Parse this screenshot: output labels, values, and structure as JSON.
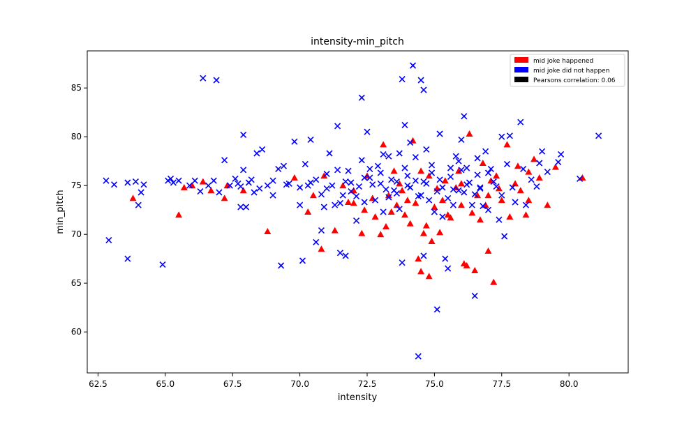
{
  "chart_data": {
    "type": "scatter",
    "title": "intensity-min_pitch",
    "xlabel": "intensity",
    "ylabel": "min_pitch",
    "xlim": [
      62.1,
      82.2
    ],
    "ylim": [
      55.8,
      88.8
    ],
    "xticks": [
      62.5,
      65.0,
      67.5,
      70.0,
      72.5,
      75.0,
      77.5,
      80.0
    ],
    "yticks": [
      60,
      65,
      70,
      75,
      80,
      85
    ],
    "grid": false,
    "legend_position": "top-right",
    "legend": [
      {
        "label": "mid joke happened",
        "color": "#ff0000"
      },
      {
        "label": "mid joke did not happen",
        "color": "#0000ff"
      },
      {
        "label": "Pearsons correlation: 0.06",
        "color": "#000000"
      }
    ],
    "series": [
      {
        "name": "mid joke happened",
        "marker": "triangle",
        "color": "#ff0000",
        "points": [
          [
            63.8,
            73.7
          ],
          [
            65.5,
            72.0
          ],
          [
            65.7,
            74.8
          ],
          [
            66.4,
            75.4
          ],
          [
            66.7,
            74.5
          ],
          [
            67.2,
            73.7
          ],
          [
            67.3,
            75.0
          ],
          [
            67.9,
            74.5
          ],
          [
            68.8,
            70.3
          ],
          [
            69.8,
            75.8
          ],
          [
            70.3,
            72.3
          ],
          [
            70.5,
            74.0
          ],
          [
            70.8,
            68.5
          ],
          [
            70.9,
            76.0
          ],
          [
            71.3,
            70.4
          ],
          [
            71.6,
            75.0
          ],
          [
            71.8,
            73.3
          ],
          [
            72.0,
            74.5
          ],
          [
            72.3,
            70.1
          ],
          [
            72.4,
            72.5
          ],
          [
            72.5,
            76.0
          ],
          [
            72.7,
            73.7
          ],
          [
            72.8,
            71.8
          ],
          [
            73.0,
            70.0
          ],
          [
            73.1,
            79.2
          ],
          [
            73.2,
            70.8
          ],
          [
            73.3,
            74.0
          ],
          [
            73.4,
            72.3
          ],
          [
            73.5,
            76.5
          ],
          [
            73.6,
            73.0
          ],
          [
            73.8,
            74.5
          ],
          [
            73.9,
            72.0
          ],
          [
            74.0,
            73.5
          ],
          [
            74.1,
            71.1
          ],
          [
            74.2,
            79.6
          ],
          [
            74.3,
            73.2
          ],
          [
            74.4,
            67.5
          ],
          [
            74.5,
            76.5
          ],
          [
            74.6,
            70.1
          ],
          [
            74.7,
            70.9
          ],
          [
            74.8,
            65.7
          ],
          [
            74.9,
            69.3
          ],
          [
            74.8,
            76.0
          ],
          [
            75.0,
            72.8
          ],
          [
            75.1,
            74.7
          ],
          [
            75.2,
            70.2
          ],
          [
            75.3,
            73.5
          ],
          [
            75.4,
            75.5
          ],
          [
            75.5,
            72.0
          ],
          [
            75.6,
            71.7
          ],
          [
            75.8,
            74.8
          ],
          [
            75.9,
            76.5
          ],
          [
            76.0,
            73.0
          ],
          [
            76.1,
            67.0
          ],
          [
            76.2,
            66.8
          ],
          [
            76.3,
            80.3
          ],
          [
            76.4,
            72.2
          ],
          [
            76.5,
            66.3
          ],
          [
            76.6,
            74.0
          ],
          [
            76.7,
            71.5
          ],
          [
            76.8,
            77.3
          ],
          [
            76.9,
            73.0
          ],
          [
            77.0,
            68.3
          ],
          [
            77.1,
            75.5
          ],
          [
            77.2,
            65.1
          ],
          [
            77.3,
            76.0
          ],
          [
            77.4,
            74.7
          ],
          [
            77.5,
            73.5
          ],
          [
            77.7,
            79.2
          ],
          [
            77.8,
            71.8
          ],
          [
            78.0,
            75.2
          ],
          [
            78.1,
            77.0
          ],
          [
            78.2,
            74.5
          ],
          [
            78.4,
            72.0
          ],
          [
            78.5,
            76.4
          ],
          [
            78.5,
            73.5
          ],
          [
            78.7,
            77.7
          ],
          [
            78.9,
            75.8
          ],
          [
            79.2,
            73.0
          ],
          [
            79.5,
            76.9
          ],
          [
            80.5,
            75.8
          ],
          [
            66.0,
            75.0
          ],
          [
            72.0,
            73.2
          ],
          [
            73.7,
            75.2
          ],
          [
            74.5,
            66.2
          ],
          [
            76.0,
            75.2
          ],
          [
            77.0,
            74.0
          ]
        ]
      },
      {
        "name": "mid joke did not happen",
        "marker": "x",
        "color": "#0000ff",
        "points": [
          [
            62.8,
            75.5
          ],
          [
            62.9,
            69.4
          ],
          [
            63.1,
            75.1
          ],
          [
            63.6,
            67.5
          ],
          [
            63.6,
            75.3
          ],
          [
            63.9,
            75.4
          ],
          [
            64.0,
            73.0
          ],
          [
            64.1,
            74.3
          ],
          [
            64.2,
            75.1
          ],
          [
            64.9,
            66.9
          ],
          [
            65.1,
            75.5
          ],
          [
            65.2,
            75.7
          ],
          [
            65.3,
            75.3
          ],
          [
            65.5,
            75.5
          ],
          [
            65.9,
            75.0
          ],
          [
            66.1,
            75.5
          ],
          [
            66.3,
            74.4
          ],
          [
            66.4,
            86.0
          ],
          [
            66.6,
            75.0
          ],
          [
            66.8,
            75.5
          ],
          [
            66.9,
            85.8
          ],
          [
            67.0,
            74.3
          ],
          [
            67.2,
            77.6
          ],
          [
            67.4,
            75.0
          ],
          [
            67.6,
            75.7
          ],
          [
            67.8,
            74.9
          ],
          [
            67.9,
            80.2
          ],
          [
            67.8,
            72.8
          ],
          [
            67.9,
            76.6
          ],
          [
            68.0,
            72.8
          ],
          [
            68.1,
            75.3
          ],
          [
            68.3,
            74.3
          ],
          [
            68.4,
            78.3
          ],
          [
            68.6,
            78.7
          ],
          [
            68.8,
            75.0
          ],
          [
            69.0,
            74.0
          ],
          [
            69.2,
            76.7
          ],
          [
            69.3,
            66.8
          ],
          [
            69.4,
            77.0
          ],
          [
            69.6,
            75.2
          ],
          [
            69.8,
            79.5
          ],
          [
            70.0,
            73.0
          ],
          [
            70.1,
            67.3
          ],
          [
            70.2,
            77.2
          ],
          [
            70.3,
            75.0
          ],
          [
            70.4,
            79.7
          ],
          [
            70.6,
            69.2
          ],
          [
            70.8,
            70.4
          ],
          [
            70.9,
            72.8
          ],
          [
            71.0,
            76.2
          ],
          [
            71.1,
            78.3
          ],
          [
            71.3,
            73.0
          ],
          [
            71.4,
            81.1
          ],
          [
            71.5,
            68.1
          ],
          [
            71.6,
            74.0
          ],
          [
            71.7,
            67.8
          ],
          [
            71.8,
            76.5
          ],
          [
            71.9,
            75.3
          ],
          [
            72.1,
            71.4
          ],
          [
            72.3,
            84.0
          ],
          [
            72.4,
            73.3
          ],
          [
            72.5,
            80.5
          ],
          [
            72.6,
            75.8
          ],
          [
            72.8,
            73.5
          ],
          [
            72.9,
            77.0
          ],
          [
            73.0,
            76.3
          ],
          [
            73.1,
            72.3
          ],
          [
            73.3,
            78.0
          ],
          [
            73.4,
            75.6
          ],
          [
            73.6,
            74.2
          ],
          [
            73.7,
            78.3
          ],
          [
            73.8,
            67.1
          ],
          [
            73.8,
            85.9
          ],
          [
            73.9,
            81.2
          ],
          [
            74.0,
            75.0
          ],
          [
            74.1,
            79.4
          ],
          [
            74.2,
            87.3
          ],
          [
            74.3,
            75.5
          ],
          [
            74.4,
            57.5
          ],
          [
            74.5,
            85.8
          ],
          [
            74.6,
            84.8
          ],
          [
            74.5,
            74.0
          ],
          [
            74.6,
            67.8
          ],
          [
            74.7,
            78.7
          ],
          [
            74.8,
            73.5
          ],
          [
            74.9,
            76.3
          ],
          [
            75.0,
            72.3
          ],
          [
            75.1,
            62.3
          ],
          [
            75.2,
            80.3
          ],
          [
            75.3,
            74.8
          ],
          [
            75.4,
            67.5
          ],
          [
            75.5,
            66.5
          ],
          [
            75.6,
            76.8
          ],
          [
            75.7,
            73.0
          ],
          [
            75.8,
            78.0
          ],
          [
            75.9,
            74.5
          ],
          [
            76.0,
            79.7
          ],
          [
            76.1,
            82.1
          ],
          [
            76.2,
            76.8
          ],
          [
            76.3,
            75.3
          ],
          [
            76.4,
            73.0
          ],
          [
            76.5,
            63.7
          ],
          [
            76.6,
            77.8
          ],
          [
            76.7,
            74.7
          ],
          [
            76.9,
            78.5
          ],
          [
            77.0,
            72.5
          ],
          [
            77.1,
            76.7
          ],
          [
            77.3,
            74.9
          ],
          [
            77.4,
            71.5
          ],
          [
            77.5,
            80.0
          ],
          [
            77.6,
            69.8
          ],
          [
            77.7,
            77.2
          ],
          [
            77.8,
            80.1
          ],
          [
            77.9,
            74.8
          ],
          [
            78.0,
            73.3
          ],
          [
            78.2,
            81.5
          ],
          [
            78.3,
            76.7
          ],
          [
            78.4,
            73.0
          ],
          [
            78.6,
            75.6
          ],
          [
            78.8,
            74.9
          ],
          [
            78.9,
            77.3
          ],
          [
            79.0,
            78.5
          ],
          [
            79.2,
            76.4
          ],
          [
            79.6,
            77.4
          ],
          [
            79.7,
            78.2
          ],
          [
            80.4,
            75.7
          ],
          [
            81.1,
            80.1
          ],
          [
            70.4,
            75.3
          ],
          [
            71.0,
            74.7
          ],
          [
            71.7,
            75.4
          ],
          [
            72.2,
            74.9
          ],
          [
            72.7,
            75.1
          ],
          [
            73.2,
            74.6
          ],
          [
            73.6,
            75.4
          ],
          [
            74.1,
            74.8
          ],
          [
            74.7,
            75.2
          ],
          [
            75.2,
            75.6
          ],
          [
            75.7,
            74.6
          ],
          [
            76.2,
            75.1
          ],
          [
            76.7,
            74.8
          ],
          [
            69.5,
            75.1
          ],
          [
            70.0,
            74.8
          ],
          [
            70.6,
            75.6
          ],
          [
            71.2,
            75.0
          ],
          [
            71.9,
            74.4
          ],
          [
            72.4,
            75.8
          ],
          [
            73.0,
            75.2
          ],
          [
            73.5,
            74.5
          ],
          [
            74.0,
            76.0
          ],
          [
            74.6,
            75.4
          ],
          [
            75.1,
            74.4
          ],
          [
            75.6,
            75.9
          ],
          [
            76.1,
            74.3
          ],
          [
            76.6,
            76.1
          ],
          [
            77.2,
            75.4
          ],
          [
            69.0,
            75.5
          ],
          [
            68.5,
            74.7
          ],
          [
            68.2,
            75.6
          ],
          [
            67.7,
            75.2
          ],
          [
            70.8,
            74.1
          ],
          [
            71.4,
            76.6
          ],
          [
            72.1,
            73.9
          ],
          [
            72.6,
            76.7
          ],
          [
            73.3,
            73.8
          ],
          [
            73.9,
            76.8
          ],
          [
            74.4,
            73.9
          ],
          [
            74.9,
            77.1
          ],
          [
            75.5,
            73.7
          ],
          [
            76.0,
            76.6
          ],
          [
            76.5,
            74.1
          ],
          [
            77.0,
            76.3
          ],
          [
            77.5,
            74.0
          ],
          [
            73.1,
            78.2
          ],
          [
            74.3,
            77.9
          ],
          [
            72.3,
            77.6
          ],
          [
            75.9,
            77.5
          ],
          [
            71.5,
            73.2
          ],
          [
            73.7,
            72.6
          ],
          [
            75.3,
            71.8
          ],
          [
            76.8,
            72.9
          ]
        ]
      }
    ]
  }
}
